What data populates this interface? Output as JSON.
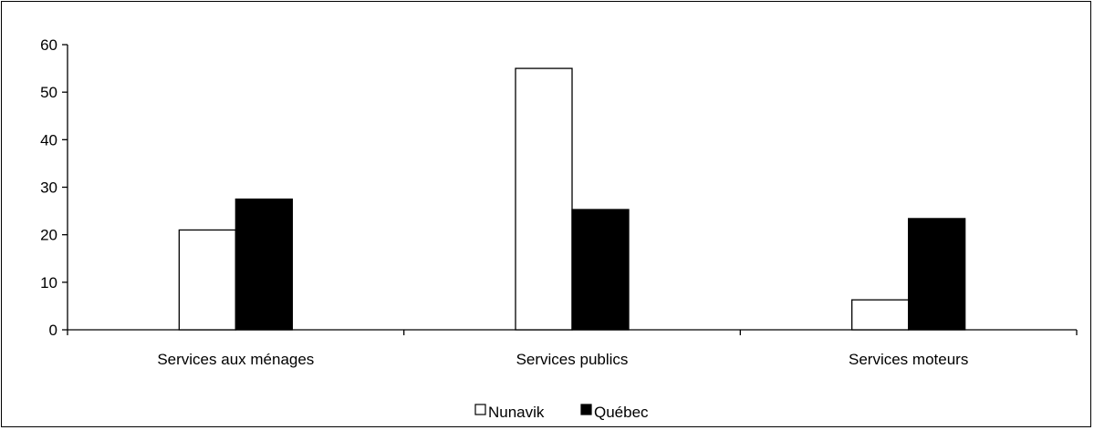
{
  "chart_data": {
    "type": "bar",
    "title": "",
    "xlabel": "",
    "ylabel": "",
    "categories": [
      "Services aux ménages",
      "Services publics",
      "Services moteurs"
    ],
    "series": [
      {
        "name": "Nunavik",
        "values": [
          21,
          55,
          6.3
        ],
        "color": "#ffffff"
      },
      {
        "name": "Québec",
        "values": [
          27.5,
          25.3,
          23.4
        ],
        "color": "#000000"
      }
    ],
    "ylim": [
      0,
      60
    ],
    "yticks": [
      0,
      10,
      20,
      30,
      40,
      50,
      60
    ],
    "grid": false,
    "legend_position": "bottom"
  }
}
